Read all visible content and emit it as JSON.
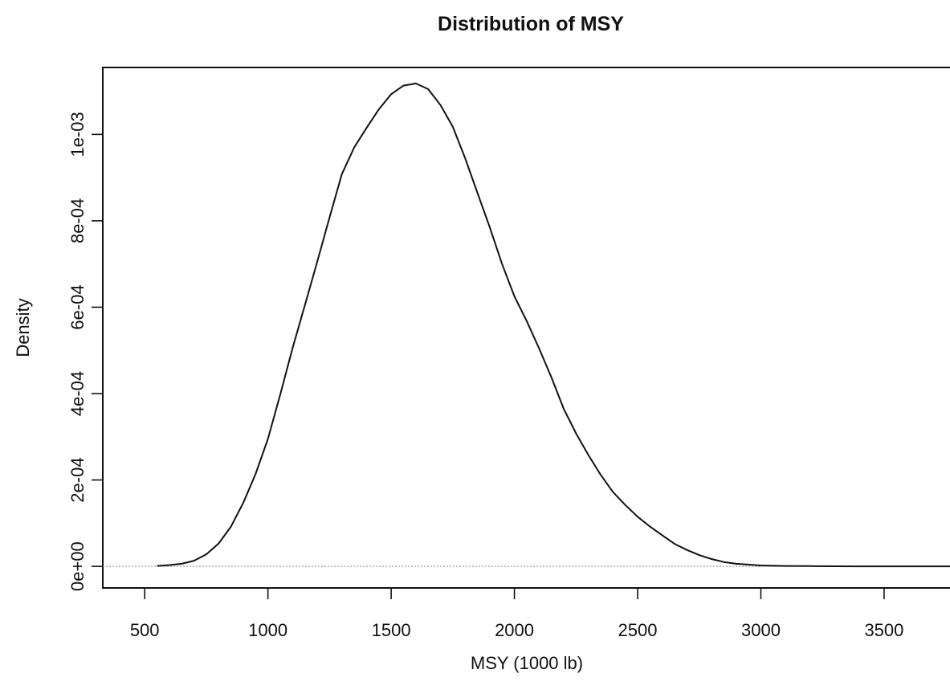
{
  "chart_data": {
    "type": "line",
    "title": "Distribution of MSY",
    "xlabel": "MSY (1000 lb)",
    "ylabel": "Density",
    "xlim": [
      330,
      3800
    ],
    "ylim": [
      -5e-05,
      0.001155
    ],
    "x_ticks": [
      500,
      1000,
      1500,
      2000,
      2500,
      3000,
      3500
    ],
    "x_tick_labels": [
      "500",
      "1000",
      "1500",
      "2000",
      "2500",
      "3000",
      "3500"
    ],
    "y_ticks": [
      0,
      0.0002,
      0.0004,
      0.0006,
      0.0008,
      0.001
    ],
    "y_tick_labels": [
      "0e+00",
      "2e-04",
      "4e-04",
      "6e-04",
      "8e-04",
      "1e-03"
    ],
    "grid": false,
    "reference_line_y": 0,
    "series": [
      {
        "x": [
          550,
          600,
          650,
          700,
          750,
          800,
          850,
          900,
          950,
          1000,
          1050,
          1100,
          1150,
          1200,
          1250,
          1300,
          1350,
          1400,
          1450,
          1500,
          1550,
          1600,
          1650,
          1700,
          1750,
          1800,
          1850,
          1900,
          1950,
          2000,
          2050,
          2100,
          2150,
          2200,
          2250,
          2300,
          2350,
          2400,
          2450,
          2500,
          2550,
          2600,
          2650,
          2700,
          2750,
          2800,
          2850,
          2900,
          3000,
          3100,
          3200,
          3300,
          3400,
          3500,
          3600,
          3700,
          3800
        ],
        "y": [
          1e-06,
          3e-06,
          6e-06,
          1.3e-05,
          2.8e-05,
          5.3e-05,
          9.2e-05,
          0.000147,
          0.000214,
          0.000295,
          0.000398,
          0.000505,
          0.000605,
          0.000705,
          0.000808,
          0.000908,
          0.00097,
          0.001015,
          0.001058,
          0.001093,
          0.001113,
          0.001118,
          0.001105,
          0.001068,
          0.001018,
          0.000945,
          0.000865,
          0.000785,
          0.0007,
          0.000625,
          0.000568,
          0.000505,
          0.000438,
          0.000365,
          0.000308,
          0.000258,
          0.000212,
          0.000172,
          0.000142,
          0.000115,
          9.2e-05,
          7.2e-05,
          5.2e-05,
          3.8e-05,
          2.6e-05,
          1.7e-05,
          1e-05,
          6e-06,
          2e-06,
          1e-06,
          5e-07,
          2e-07,
          1e-07,
          5e-08,
          2e-08,
          1e-08,
          0.0
        ]
      }
    ]
  }
}
